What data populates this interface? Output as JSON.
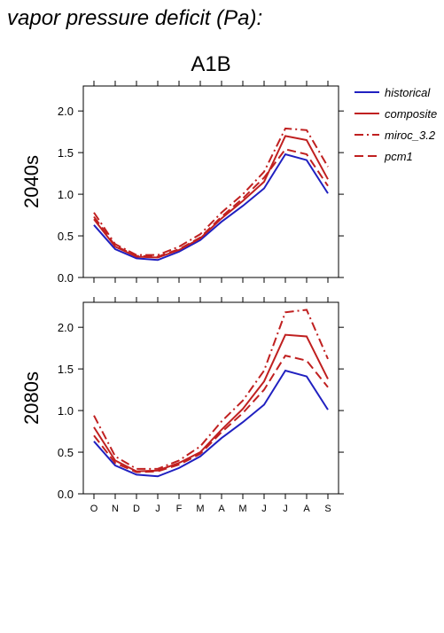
{
  "title": "vapor pressure deficit (Pa):",
  "subtitle": "A1B",
  "chart_data": [
    {
      "type": "line",
      "y_label": "2040s",
      "ylim": [
        0,
        2.3
      ],
      "yticks": [
        {
          "value": 0,
          "label": "0.0"
        },
        0.5,
        {
          "value": 1,
          "label": "1.0"
        },
        1.5,
        {
          "value": 2,
          "label": "2.0"
        }
      ],
      "series": [
        {
          "name": "historical",
          "color": "#2020c0",
          "dash": "solid",
          "values": [
            0.63,
            0.34,
            0.23,
            0.21,
            0.31,
            0.45,
            0.67,
            0.86,
            1.07,
            1.48,
            1.41,
            1.01
          ]
        },
        {
          "name": "composite",
          "color": "#c02020",
          "dash": "solid",
          "values": [
            0.7,
            0.37,
            0.25,
            0.24,
            0.33,
            0.47,
            0.71,
            0.92,
            1.15,
            1.7,
            1.65,
            1.18
          ]
        },
        {
          "name": "miroc_3.2",
          "color": "#c02020",
          "dash": "dashdot",
          "values": [
            0.78,
            0.4,
            0.27,
            0.27,
            0.37,
            0.52,
            0.78,
            1.0,
            1.27,
            1.79,
            1.77,
            1.33
          ]
        },
        {
          "name": "pcm1",
          "color": "#c02020",
          "dash": "dash",
          "values": [
            0.73,
            0.38,
            0.26,
            0.25,
            0.34,
            0.48,
            0.73,
            0.95,
            1.2,
            1.54,
            1.48,
            1.1
          ]
        }
      ]
    },
    {
      "type": "line",
      "y_label": "2080s",
      "ylim": [
        0,
        2.3
      ],
      "yticks": [
        {
          "value": 0,
          "label": "0.0"
        },
        0.5,
        {
          "value": 1,
          "label": "1.0"
        },
        1.5,
        {
          "value": 2,
          "label": "2.0"
        }
      ],
      "categories": [
        "O",
        "N",
        "D",
        "J",
        "F",
        "M",
        "A",
        "M",
        "J",
        "J",
        "A",
        "S"
      ],
      "series": [
        {
          "name": "historical",
          "color": "#2020c0",
          "dash": "solid",
          "values": [
            0.63,
            0.34,
            0.23,
            0.21,
            0.31,
            0.45,
            0.67,
            0.86,
            1.07,
            1.48,
            1.41,
            1.01
          ]
        },
        {
          "name": "composite",
          "color": "#c02020",
          "dash": "solid",
          "values": [
            0.8,
            0.4,
            0.27,
            0.28,
            0.37,
            0.5,
            0.77,
            1.02,
            1.35,
            1.91,
            1.89,
            1.38
          ]
        },
        {
          "name": "miroc_3.2",
          "color": "#c02020",
          "dash": "dashdot",
          "values": [
            0.94,
            0.45,
            0.3,
            0.3,
            0.4,
            0.57,
            0.87,
            1.12,
            1.48,
            2.18,
            2.21,
            1.62
          ]
        },
        {
          "name": "pcm1",
          "color": "#c02020",
          "dash": "dash",
          "values": [
            0.7,
            0.37,
            0.26,
            0.27,
            0.35,
            0.48,
            0.74,
            0.97,
            1.25,
            1.66,
            1.6,
            1.28
          ]
        }
      ]
    }
  ]
}
